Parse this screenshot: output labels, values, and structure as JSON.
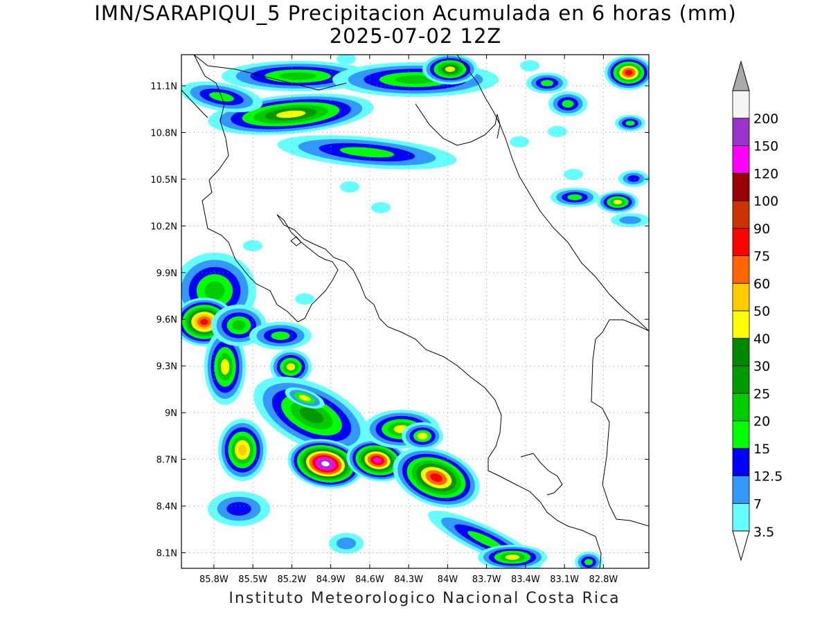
{
  "header": {
    "title": "IMN/SARAPIQUI_5 Precipitacion Acumulada en 6 horas (mm)",
    "subtitle": "2025-07-02 12Z"
  },
  "footer": {
    "credit": "Instituto Meteorologico Nacional Costa Rica"
  },
  "map": {
    "lon_range": [
      -86.05,
      -82.45
    ],
    "lat_range": [
      8.0,
      11.3
    ],
    "lat_ticks": [
      {
        "value": 11.1,
        "label": "11.1N"
      },
      {
        "value": 10.8,
        "label": "10.8N"
      },
      {
        "value": 10.5,
        "label": "10.5N"
      },
      {
        "value": 10.2,
        "label": "10.2N"
      },
      {
        "value": 9.9,
        "label": "9.9N"
      },
      {
        "value": 9.6,
        "label": "9.6N"
      },
      {
        "value": 9.3,
        "label": "9.3N"
      },
      {
        "value": 9.0,
        "label": "9N"
      },
      {
        "value": 8.7,
        "label": "8.7N"
      },
      {
        "value": 8.4,
        "label": "8.4N"
      },
      {
        "value": 8.1,
        "label": "8.1N"
      }
    ],
    "lon_ticks": [
      {
        "value": -85.8,
        "label": "85.8W"
      },
      {
        "value": -85.5,
        "label": "85.5W"
      },
      {
        "value": -85.2,
        "label": "85.2W"
      },
      {
        "value": -84.9,
        "label": "84.9W"
      },
      {
        "value": -84.6,
        "label": "84.6W"
      },
      {
        "value": -84.3,
        "label": "84.3W"
      },
      {
        "value": -84.0,
        "label": "84W"
      },
      {
        "value": -83.7,
        "label": "83.7W"
      },
      {
        "value": -83.4,
        "label": "83.4W"
      },
      {
        "value": -83.1,
        "label": "83.1W"
      },
      {
        "value": -82.8,
        "label": "82.8W"
      }
    ],
    "grid": "dotted"
  },
  "colorbar": {
    "unit": "mm",
    "levels": [
      {
        "label": "3.5",
        "color": "#66ffff"
      },
      {
        "label": "7",
        "color": "#3399ff"
      },
      {
        "label": "12.5",
        "color": "#0000ff"
      },
      {
        "label": "15",
        "color": "#00ff00"
      },
      {
        "label": "20",
        "color": "#00cc00"
      },
      {
        "label": "25",
        "color": "#009900"
      },
      {
        "label": "30",
        "color": "#008800"
      },
      {
        "label": "40",
        "color": "#ffff00"
      },
      {
        "label": "50",
        "color": "#ffcc00"
      },
      {
        "label": "60",
        "color": "#ff6600"
      },
      {
        "label": "75",
        "color": "#ff0000"
      },
      {
        "label": "90",
        "color": "#cc3300"
      },
      {
        "label": "100",
        "color": "#990000"
      },
      {
        "label": "120",
        "color": "#ff00ff"
      },
      {
        "label": "150",
        "color": "#9933cc"
      },
      {
        "label": "200",
        "color": "#f5f5f5"
      }
    ],
    "over_color": "#aaaaaa",
    "under_color": "#ffffff"
  }
}
